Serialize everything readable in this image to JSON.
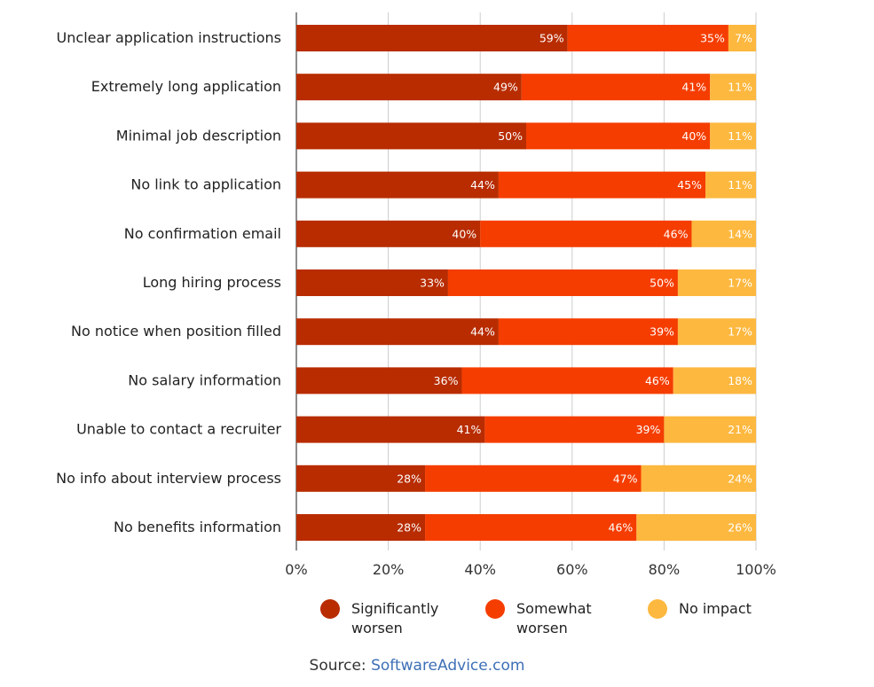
{
  "chart_data": {
    "type": "bar",
    "orientation": "horizontal",
    "stacked": true,
    "categories": [
      "Unclear application instructions",
      "Extremely long application",
      "Minimal job description",
      "No link to application",
      "No confirmation email",
      "Long hiring process",
      "No notice when position filled",
      "No salary information",
      "Unable to contact a recruiter",
      "No info about interview process",
      "No benefits information"
    ],
    "series": [
      {
        "name": "Significantly worsen",
        "color": "#b82c00",
        "values": [
          59,
          49,
          50,
          44,
          40,
          33,
          44,
          36,
          41,
          28,
          28
        ]
      },
      {
        "name": "Somewhat worsen",
        "color": "#f53d00",
        "values": [
          35,
          41,
          40,
          45,
          46,
          50,
          39,
          46,
          39,
          47,
          46
        ]
      },
      {
        "name": "No impact",
        "color": "#fdb83f",
        "values": [
          7,
          11,
          11,
          11,
          14,
          17,
          17,
          18,
          21,
          24,
          26
        ]
      }
    ],
    "value_suffix": "%",
    "xlim": [
      0,
      100
    ],
    "x_ticks": [
      "0%",
      "20%",
      "40%",
      "60%",
      "80%",
      "100%"
    ],
    "grid": true,
    "legend_position": "bottom"
  },
  "legend_lines": [
    [
      "Significantly",
      "worsen"
    ],
    [
      "Somewhat",
      "worsen"
    ],
    [
      "No impact"
    ]
  ],
  "source": {
    "prefix": "Source: ",
    "link_text": "SoftwareAdvice.com"
  }
}
